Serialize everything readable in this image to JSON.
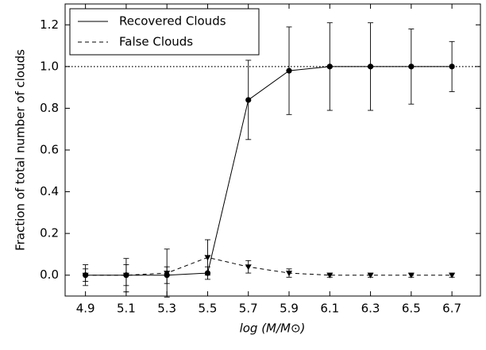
{
  "chart_data": {
    "type": "errorbar-line",
    "x_label": "log (M/M⊙)",
    "y_label": "Fraction of total number of clouds",
    "x": [
      4.9,
      5.1,
      5.3,
      5.5,
      5.7,
      5.9,
      6.1,
      6.3,
      6.5,
      6.7
    ],
    "series": [
      {
        "name": "Recovered Clouds",
        "color": "#000000",
        "linestyle": "solid",
        "marker": "circle",
        "values": [
          0,
          0,
          0,
          0.01,
          0.84,
          0.98,
          1.0,
          1.0,
          1.0,
          1.0
        ],
        "errors": [
          0.05,
          0.08,
          0.04,
          0.03,
          0.19,
          0.21,
          0.21,
          0.21,
          0.18,
          0.12
        ]
      },
      {
        "name": "False Clouds",
        "color": "#000000",
        "linestyle": "dashed",
        "marker": "triangle-down",
        "values": [
          0,
          0,
          0.01,
          0.085,
          0.04,
          0.01,
          0,
          0,
          0,
          0
        ],
        "errors": [
          0.03,
          0.05,
          0.115,
          0.085,
          0.03,
          0.02,
          0.01,
          0.01,
          0.01,
          0.01
        ]
      }
    ],
    "hline": 1.0,
    "xlim": [
      4.8,
      6.84
    ],
    "ylim": [
      -0.1,
      1.3
    ],
    "xticks": [
      4.9,
      5.1,
      5.3,
      5.5,
      5.7,
      5.9,
      6.1,
      6.3,
      6.5,
      6.7
    ],
    "yticks": [
      {
        "value": 0,
        "label": "0.0"
      },
      0.2,
      0.4,
      0.6,
      0.8,
      {
        "value": 1,
        "label": "1.0"
      },
      1.2
    ],
    "legend": "upper-left"
  }
}
